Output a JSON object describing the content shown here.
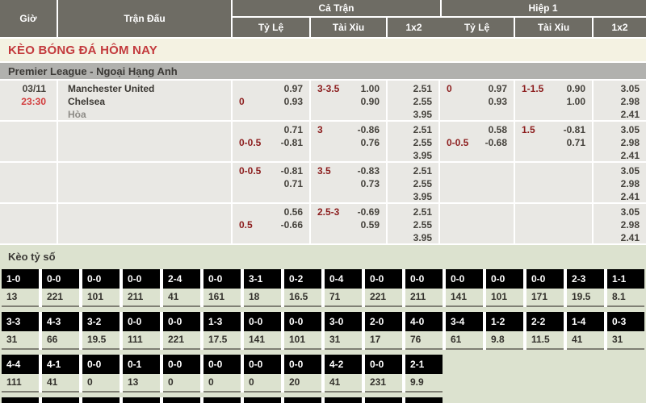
{
  "header": {
    "col_time": "Giờ",
    "col_match": "Trận Đấu",
    "group_full": "Cả Trận",
    "group_half": "Hiệp 1",
    "sub_handicap": "Tỷ Lệ",
    "sub_over_under": "Tài Xỉu",
    "sub_1x2": "1x2"
  },
  "title": "KÈO BÓNG ĐÁ HÔM NAY",
  "league": "Premier League - Ngoại Hạng Anh",
  "match": {
    "date": "03/11",
    "time": "23:30",
    "home": "Manchester United",
    "away": "Chelsea",
    "draw_label": "Hòa"
  },
  "odds_rows": [
    {
      "full_hdp": [
        {
          "l": "",
          "r": "0.97"
        },
        {
          "l": "0",
          "r": "0.93"
        }
      ],
      "full_ou": [
        {
          "l": "3-3.5",
          "r": "1.00"
        },
        {
          "l": "",
          "r": "0.90"
        }
      ],
      "full_1x2": [
        "2.51",
        "2.55",
        "3.95"
      ],
      "half_hdp": [
        {
          "l": "0",
          "r": "0.97"
        },
        {
          "l": "",
          "r": "0.93"
        }
      ],
      "half_ou": [
        {
          "l": "1-1.5",
          "r": "0.90"
        },
        {
          "l": "",
          "r": "1.00"
        }
      ],
      "half_1x2": [
        "3.05",
        "2.98",
        "2.41"
      ]
    },
    {
      "full_hdp": [
        {
          "l": "",
          "r": "0.71"
        },
        {
          "l": "0-0.5",
          "r": "-0.81"
        }
      ],
      "full_ou": [
        {
          "l": "3",
          "r": "-0.86"
        },
        {
          "l": "",
          "r": "0.76"
        }
      ],
      "full_1x2": [
        "2.51",
        "2.55",
        "3.95"
      ],
      "half_hdp": [
        {
          "l": "",
          "r": "0.58"
        },
        {
          "l": "0-0.5",
          "r": "-0.68"
        }
      ],
      "half_ou": [
        {
          "l": "1.5",
          "r": "-0.81"
        },
        {
          "l": "",
          "r": "0.71"
        }
      ],
      "half_1x2": [
        "3.05",
        "2.98",
        "2.41"
      ]
    },
    {
      "full_hdp": [
        {
          "l": "0-0.5",
          "r": "-0.81"
        },
        {
          "l": "",
          "r": "0.71"
        }
      ],
      "full_ou": [
        {
          "l": "3.5",
          "r": "-0.83"
        },
        {
          "l": "",
          "r": "0.73"
        }
      ],
      "full_1x2": [
        "2.51",
        "2.55",
        "3.95"
      ],
      "half_hdp": [],
      "half_ou": [],
      "half_1x2": [
        "3.05",
        "2.98",
        "2.41"
      ]
    },
    {
      "full_hdp": [
        {
          "l": "",
          "r": "0.56"
        },
        {
          "l": "0.5",
          "r": "-0.66"
        }
      ],
      "full_ou": [
        {
          "l": "2.5-3",
          "r": "-0.69"
        },
        {
          "l": "",
          "r": "0.59"
        }
      ],
      "full_1x2": [
        "2.51",
        "2.55",
        "3.95"
      ],
      "half_hdp": [],
      "half_ou": [],
      "half_1x2": [
        "3.05",
        "2.98",
        "2.41"
      ]
    }
  ],
  "score_section": {
    "title": "Kèo tỷ số",
    "rows": [
      {
        "cells": [
          {
            "s": "1-0",
            "v": "13"
          },
          {
            "s": "0-0",
            "v": "221"
          },
          {
            "s": "0-0",
            "v": "101"
          },
          {
            "s": "0-0",
            "v": "211"
          },
          {
            "s": "2-4",
            "v": "41"
          },
          {
            "s": "0-0",
            "v": "161"
          },
          {
            "s": "3-1",
            "v": "18"
          },
          {
            "s": "0-2",
            "v": "16.5"
          },
          {
            "s": "0-4",
            "v": "71"
          },
          {
            "s": "0-0",
            "v": "221"
          },
          {
            "s": "0-0",
            "v": "211"
          },
          {
            "s": "0-0",
            "v": "141"
          },
          {
            "s": "0-0",
            "v": "101"
          },
          {
            "s": "0-0",
            "v": "171"
          },
          {
            "s": "2-3",
            "v": "19.5"
          },
          {
            "s": "1-1",
            "v": "8.1"
          }
        ]
      },
      {
        "cells": [
          {
            "s": "3-3",
            "v": "31"
          },
          {
            "s": "4-3",
            "v": "66"
          },
          {
            "s": "3-2",
            "v": "19.5"
          },
          {
            "s": "0-0",
            "v": "111"
          },
          {
            "s": "0-0",
            "v": "221"
          },
          {
            "s": "1-3",
            "v": "17.5"
          },
          {
            "s": "0-0",
            "v": "141"
          },
          {
            "s": "0-0",
            "v": "101"
          },
          {
            "s": "3-0",
            "v": "31"
          },
          {
            "s": "2-0",
            "v": "17"
          },
          {
            "s": "4-0",
            "v": "76"
          },
          {
            "s": "3-4",
            "v": "61"
          },
          {
            "s": "1-2",
            "v": "9.8"
          },
          {
            "s": "2-2",
            "v": "11.5"
          },
          {
            "s": "1-4",
            "v": "41"
          },
          {
            "s": "0-3",
            "v": "31"
          }
        ]
      },
      {
        "cells": [
          {
            "s": "4-4",
            "v": "111"
          },
          {
            "s": "4-1",
            "v": "41"
          },
          {
            "s": "0-0",
            "v": "0"
          },
          {
            "s": "0-1",
            "v": "13"
          },
          {
            "s": "0-0",
            "v": "0"
          },
          {
            "s": "0-0",
            "v": "0"
          },
          {
            "s": "0-0",
            "v": "0"
          },
          {
            "s": "0-0",
            "v": "20"
          },
          {
            "s": "4-2",
            "v": "41"
          },
          {
            "s": "0-0",
            "v": "231"
          },
          {
            "s": "2-1",
            "v": "9.9"
          }
        ]
      }
    ],
    "partial_row_count": 11
  },
  "colors": {
    "header_bg": "#6e6c64",
    "title_color": "#c33a3d",
    "title_bg": "#f4f2e2",
    "league_bg": "#b1b1ae",
    "odds_bg": "#e9e8e4",
    "handicap_color": "#8c1d1d",
    "time_color": "#d23c3c",
    "score_section_bg": "#dce2cf",
    "score_box_bg": "#000000"
  }
}
